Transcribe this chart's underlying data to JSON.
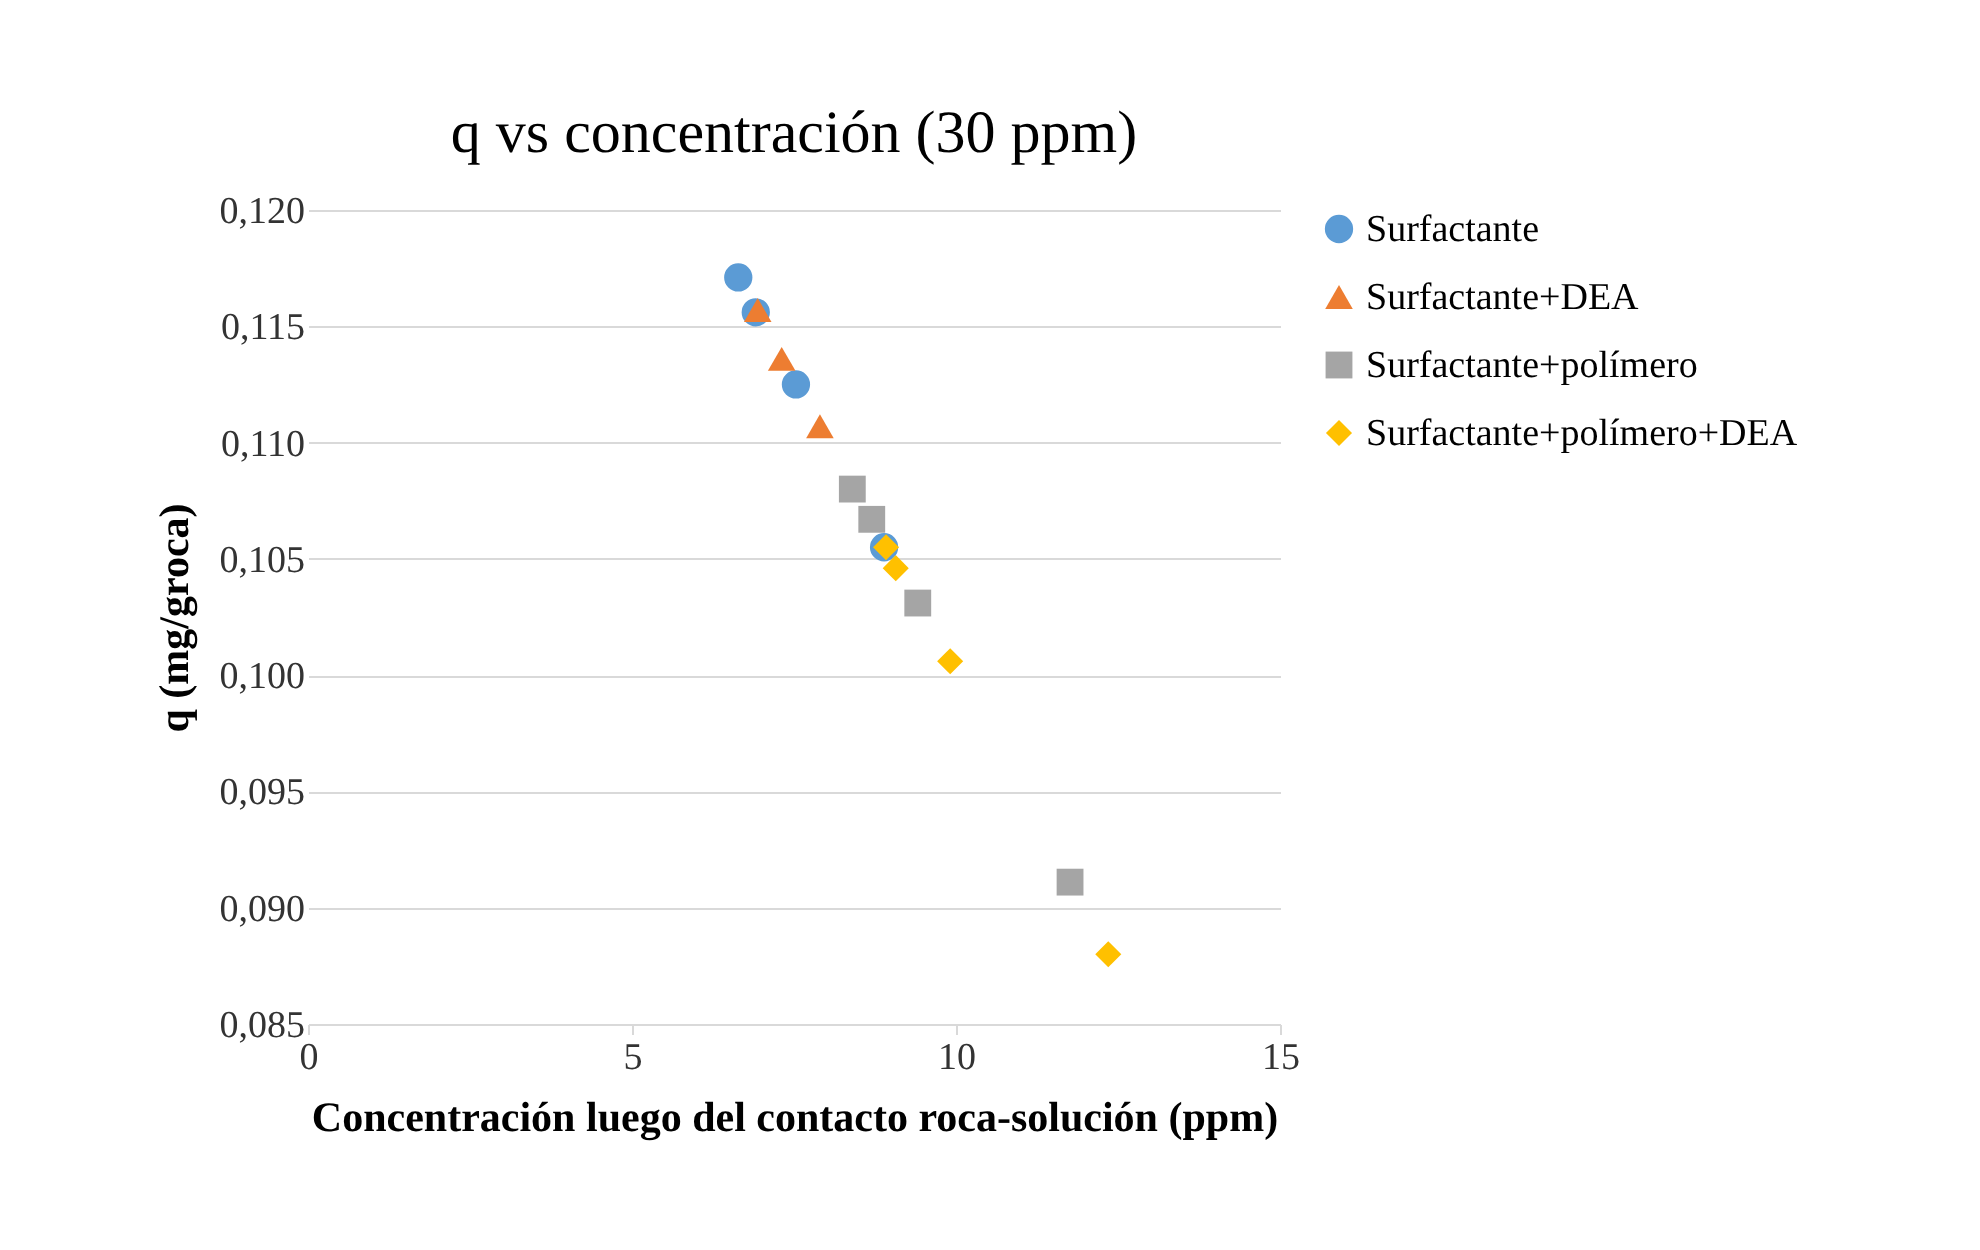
{
  "chart_data": {
    "type": "scatter",
    "title": "q vs concentración (30 ppm)",
    "xlabel": "Concentración luego del contacto roca-solución (ppm)",
    "ylabel": "q (mg/groca)",
    "xlim": [
      0,
      15
    ],
    "xticks": [
      0,
      5,
      10,
      15
    ],
    "ylim": [
      0.085,
      0.12
    ],
    "yticks": [
      {
        "value": 0.085,
        "label": "0,085"
      },
      {
        "value": 0.09,
        "label": "0,090"
      },
      {
        "value": 0.095,
        "label": "0,095"
      },
      {
        "value": 0.1,
        "label": "0,100"
      },
      {
        "value": 0.105,
        "label": "0,105"
      },
      {
        "value": 0.11,
        "label": "0,110"
      },
      {
        "value": 0.115,
        "label": "0,115"
      },
      {
        "value": 0.12,
        "label": "0,120"
      }
    ],
    "grid": "y",
    "legend": "right",
    "series": [
      {
        "name": "Surfactante",
        "color": "#5b9bd5",
        "marker": "circle",
        "x": [
          6.64,
          6.91,
          7.53,
          8.89
        ],
        "values": [
          0.1171,
          0.1156,
          0.1125,
          0.1055
        ]
      },
      {
        "name": "Surfactante+DEA",
        "color": "#ed7d31",
        "marker": "triangle",
        "x": [
          6.94,
          7.31,
          7.9
        ],
        "values": [
          0.1157,
          0.1136,
          0.1107
        ]
      },
      {
        "name": "Surfactante+polímero",
        "color": "#a5a5a5",
        "marker": "square",
        "x": [
          8.4,
          8.7,
          9.41,
          11.76
        ],
        "values": [
          0.108,
          0.1067,
          0.1031,
          0.0911
        ]
      },
      {
        "name": "Surfactante+polímero+DEA",
        "color": "#ffc000",
        "marker": "diamond",
        "x": [
          8.92,
          9.07,
          9.91,
          12.35
        ],
        "values": [
          0.1055,
          0.1046,
          0.1006,
          0.088
        ]
      }
    ]
  }
}
